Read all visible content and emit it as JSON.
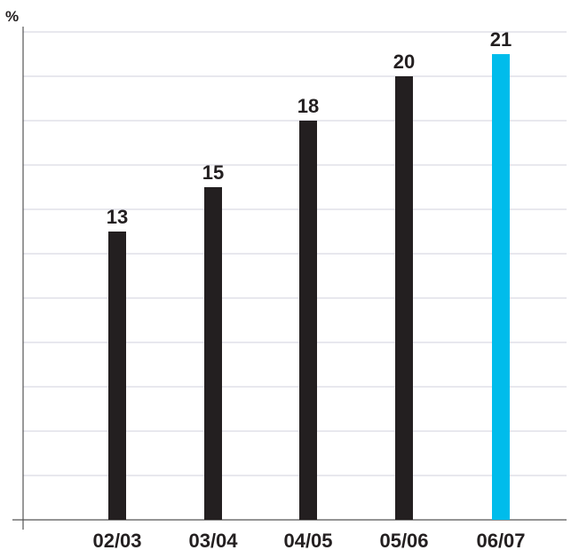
{
  "page": {
    "title_fragment": ""
  },
  "colors": {
    "bar": "#231f20",
    "highlight": "#00bceb",
    "grid": "#d9d9e3",
    "axis": "#555555"
  },
  "chart_data": {
    "type": "bar",
    "title": "",
    "xlabel": "",
    "ylabel": "%",
    "ylim": [
      0,
      22
    ],
    "grid": true,
    "categories": [
      "02/03",
      "03/04",
      "04/05",
      "05/06",
      "06/07"
    ],
    "values": [
      13,
      15,
      18,
      20,
      21
    ],
    "data_labels": [
      "13",
      "15",
      "18",
      "20",
      "21"
    ],
    "highlight_category": "06/07"
  }
}
